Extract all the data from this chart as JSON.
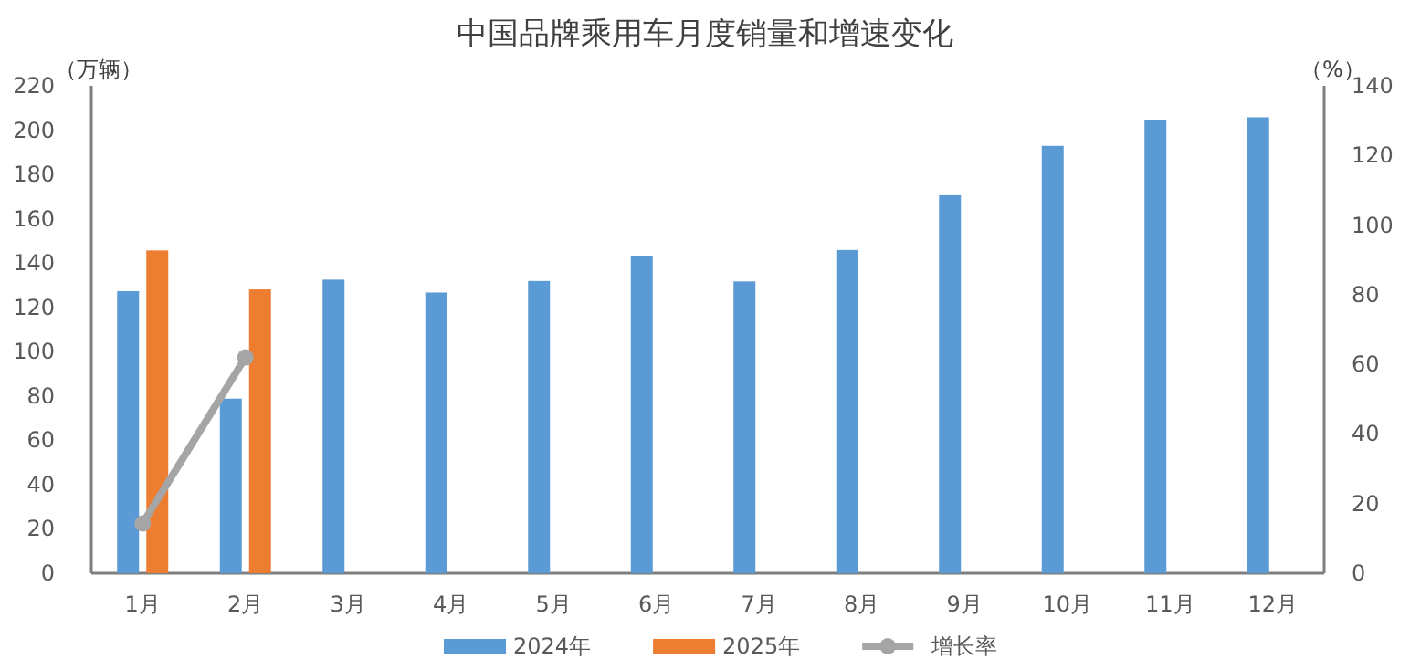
{
  "chart_data": {
    "type": "bar",
    "title": "中国品牌乘用车月度销量和增速变化",
    "ylabel": "（万辆）",
    "y2label": "（%）",
    "categories": [
      "1月",
      "2月",
      "3月",
      "4月",
      "5月",
      "6月",
      "7月",
      "8月",
      "9月",
      "10月",
      "11月",
      "12月"
    ],
    "series": [
      {
        "name": "2024年",
        "color": "#5b9bd5",
        "values": [
          127.3,
          78.8,
          132.5,
          126.7,
          131.9,
          143.2,
          131.7,
          145.9,
          170.6,
          192.9,
          204.7,
          205.8
        ]
      },
      {
        "name": "2025年",
        "color": "#ed7d31",
        "values": [
          145.7,
          128.1,
          null,
          null,
          null,
          null,
          null,
          null,
          null,
          null,
          null,
          null
        ]
      },
      {
        "name": "增长率",
        "type": "line",
        "axis": "y2",
        "color": "#a5a5a5",
        "marker": "circle",
        "values": [
          14.3,
          62.0,
          null,
          null,
          null,
          null,
          null,
          null,
          null,
          null,
          null,
          null
        ]
      }
    ],
    "ylim": [
      0,
      220
    ],
    "yticks": [
      0,
      20,
      40,
      60,
      80,
      100,
      120,
      140,
      160,
      180,
      200,
      220
    ],
    "y2lim": [
      0,
      140
    ],
    "y2ticks": [
      0,
      20,
      40,
      60,
      80,
      100,
      120,
      140
    ],
    "legend": "bottom"
  }
}
